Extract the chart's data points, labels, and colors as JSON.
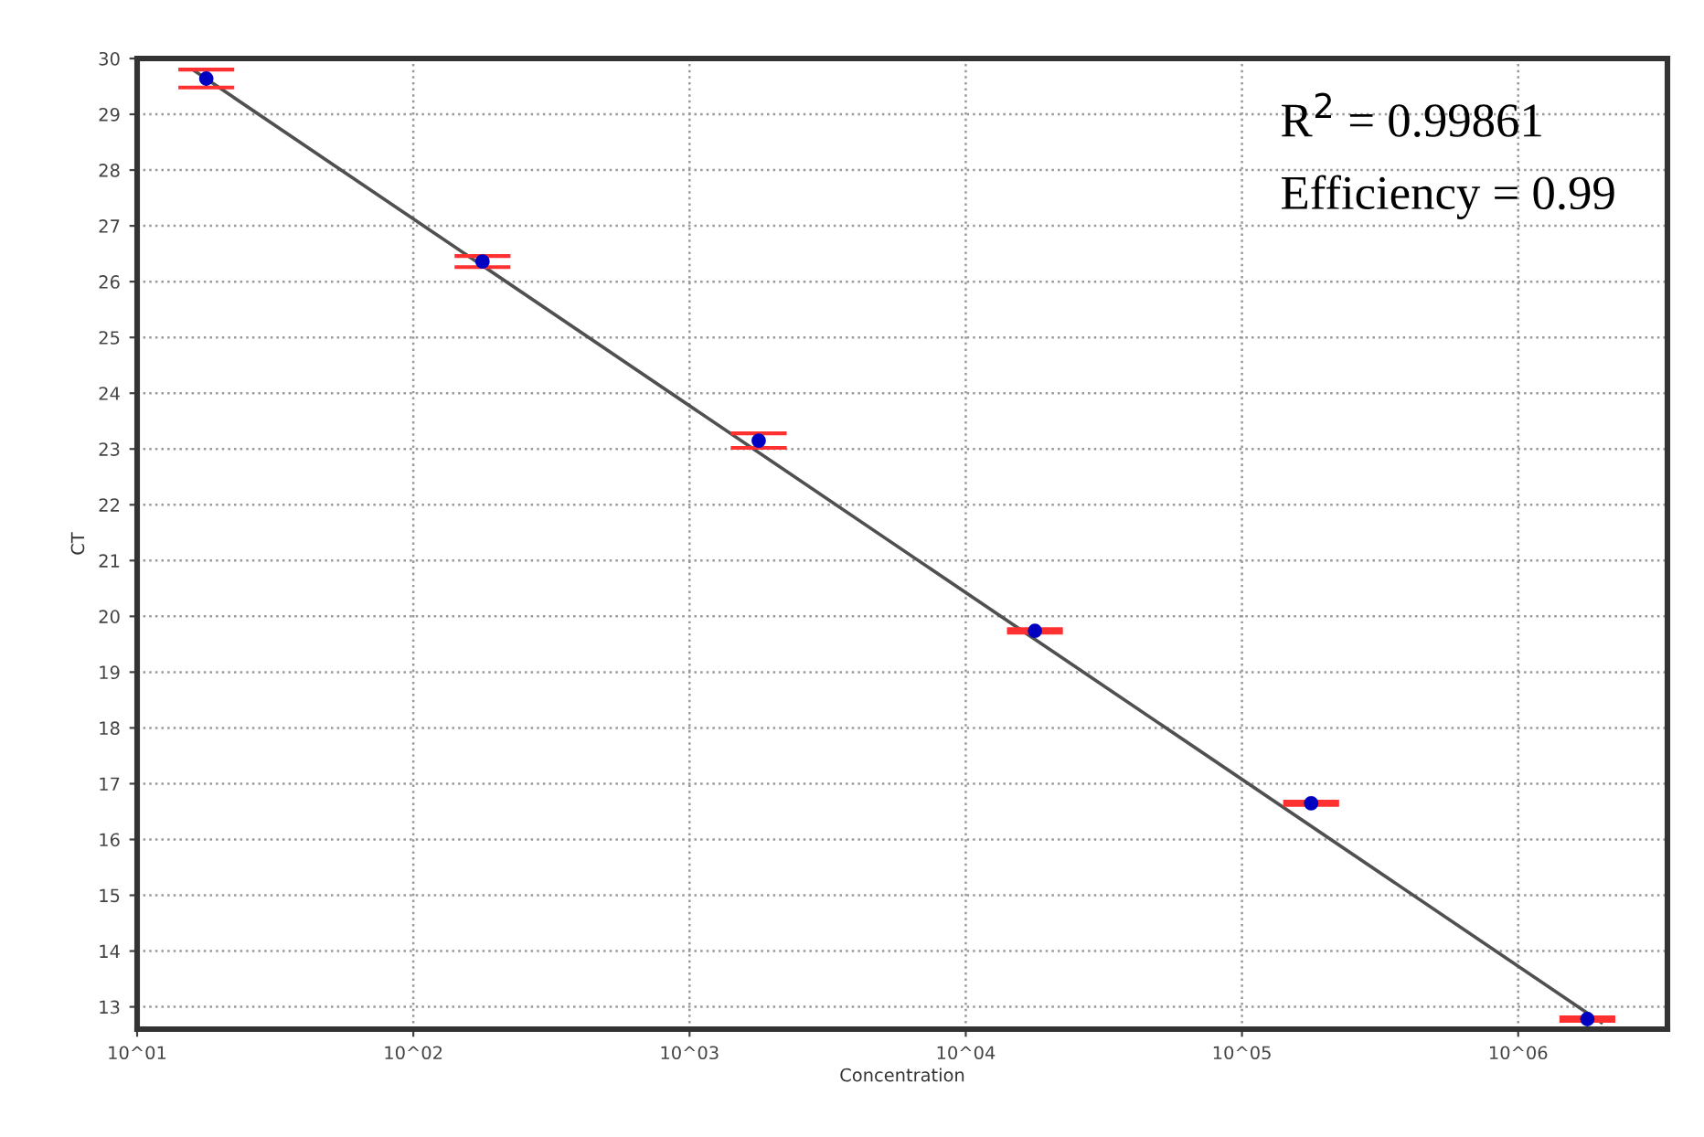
{
  "chart_data": {
    "type": "scatter",
    "xlabel": "Concentration",
    "ylabel": "CT",
    "log": "x",
    "grid": true,
    "marker": "circle",
    "xlim": [
      10,
      3470000
    ],
    "ylim": [
      12.6,
      30
    ],
    "xticks": [
      {
        "value": 10,
        "label": "10^01"
      },
      {
        "value": 100,
        "label": "10^02"
      },
      {
        "value": 1000,
        "label": "10^03"
      },
      {
        "value": 10000,
        "label": "10^04"
      },
      {
        "value": 100000,
        "label": "10^05"
      },
      {
        "value": 1000000,
        "label": "10^06"
      }
    ],
    "yticks": [
      13,
      14,
      15,
      16,
      17,
      18,
      19,
      20,
      21,
      22,
      23,
      24,
      25,
      26,
      27,
      28,
      29,
      30
    ],
    "series": [
      {
        "type": "line",
        "color": "#505050",
        "x": [
          16,
          2000000
        ],
        "values": [
          29.79,
          12.72
        ],
        "marker": "none",
        "line_style": "solid"
      },
      {
        "color": "#0000c0",
        "x": [
          17.8,
          178,
          1780,
          17800,
          178000,
          1780000
        ],
        "values": [
          29.64,
          26.36,
          23.15,
          19.74,
          16.65,
          12.78
        ],
        "errors": [
          0.16,
          0.1,
          0.13,
          0.03,
          0.03,
          0.03
        ]
      }
    ],
    "annotations": [
      "R$^{2}$ = 0.99861",
      "Efficiency = 0.99"
    ]
  }
}
